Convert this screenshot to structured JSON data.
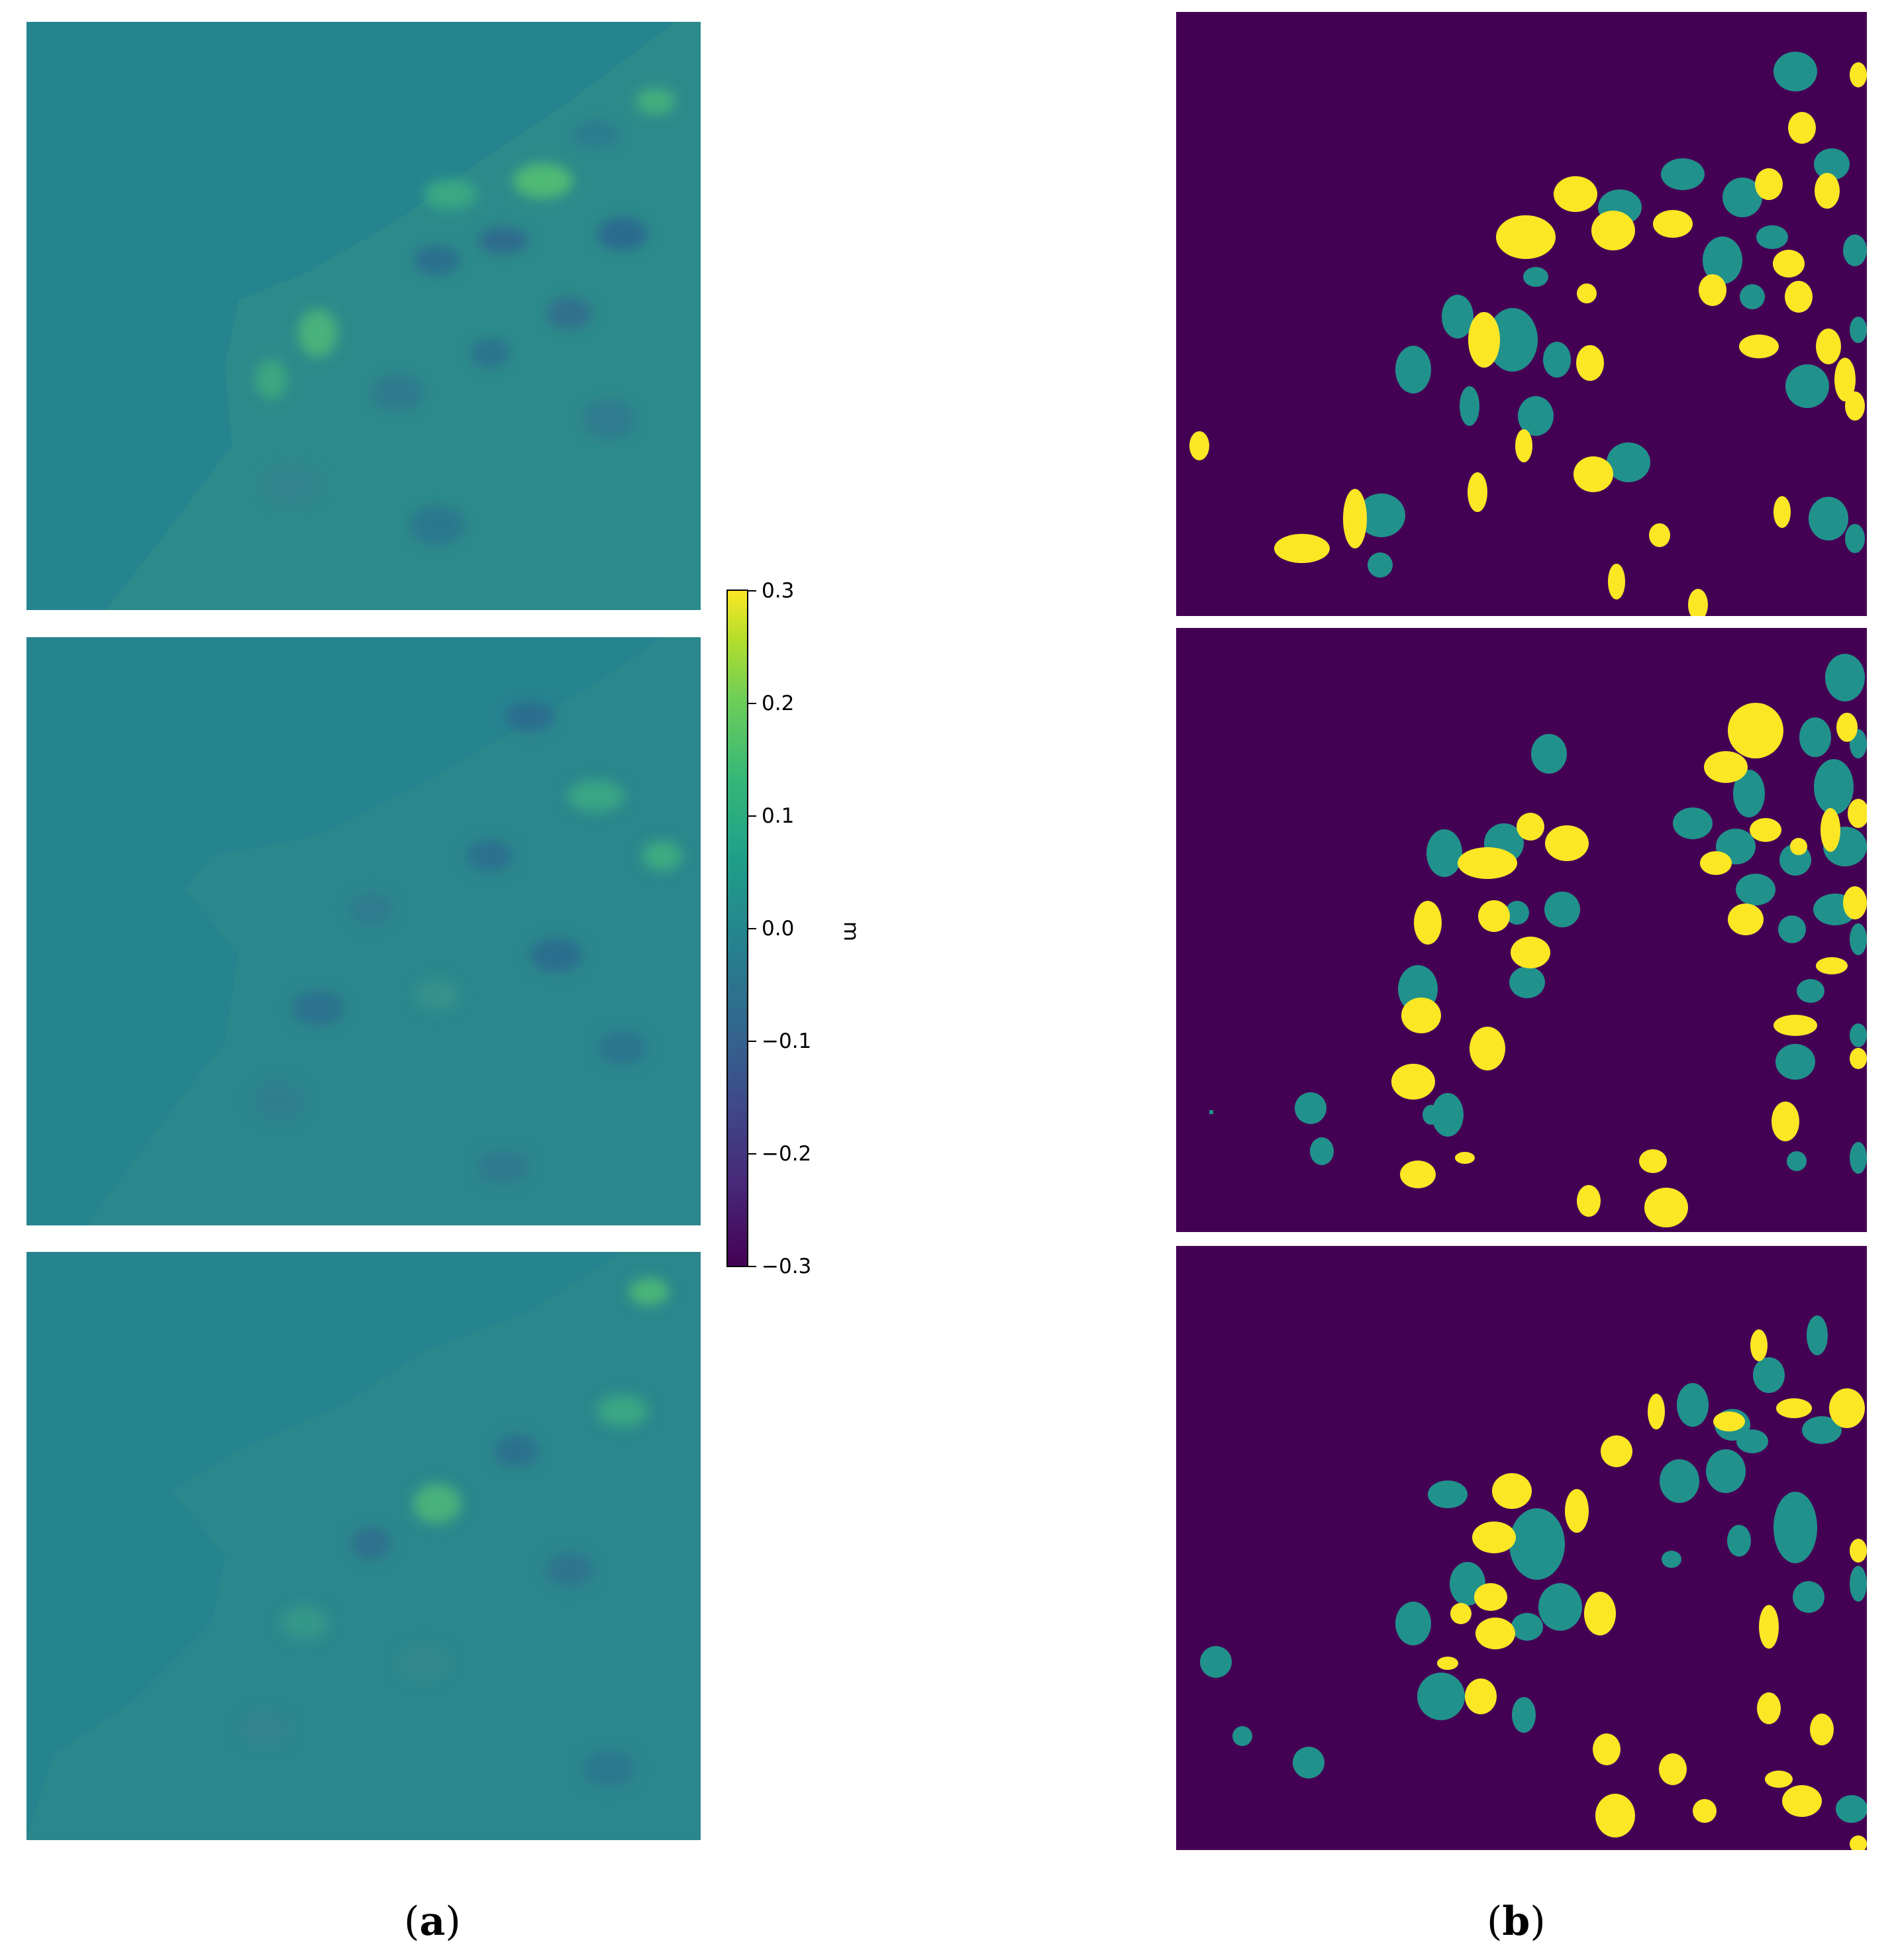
{
  "colors": {
    "background_field": "#21918c",
    "mask_background": "#440154",
    "mask_teal": "#21918c",
    "mask_yellow": "#fde725"
  },
  "colorbar": {
    "ticks": [
      "0.3",
      "0.2",
      "0.1",
      "0.0",
      "−0.1",
      "−0.2",
      "−0.3"
    ],
    "unit": "m",
    "range": [
      -0.3,
      0.3
    ],
    "colormap": "viridis"
  },
  "captions": {
    "left": {
      "open": "(",
      "letter": "a",
      "close": ")"
    },
    "right": {
      "open": "(",
      "letter": "b",
      "close": ")"
    }
  }
}
